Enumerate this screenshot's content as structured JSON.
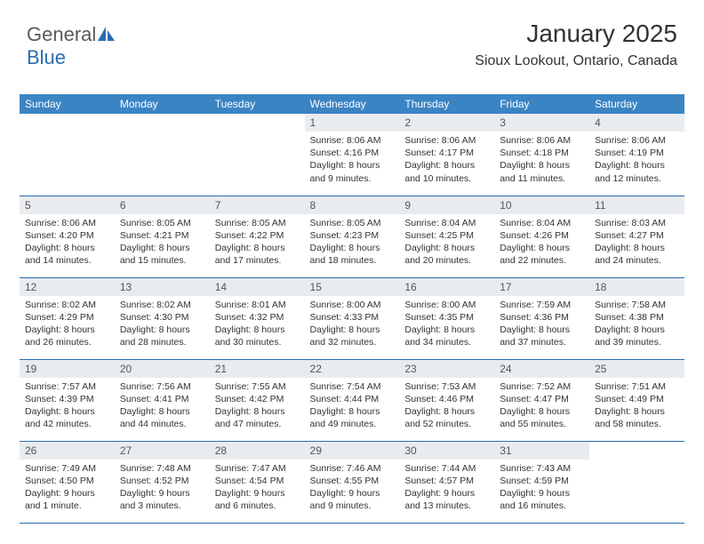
{
  "brand": {
    "part1": "General",
    "part2": "Blue"
  },
  "title": "January 2025",
  "location": "Sioux Lookout, Ontario, Canada",
  "colors": {
    "header_bg": "#3b84c4",
    "header_text": "#ffffff",
    "daynum_bg": "#e9ecef",
    "border": "#2a6db0",
    "text": "#333333",
    "logo_gray": "#5a5a5a",
    "logo_blue": "#2a6db0",
    "background": "#ffffff"
  },
  "typography": {
    "title_fontsize": 28,
    "location_fontsize": 16,
    "dayheader_fontsize": 12,
    "daynum_fontsize": 12,
    "body_fontsize": 10.5
  },
  "day_headers": [
    "Sunday",
    "Monday",
    "Tuesday",
    "Wednesday",
    "Thursday",
    "Friday",
    "Saturday"
  ],
  "weeks": [
    [
      {
        "empty": true
      },
      {
        "empty": true
      },
      {
        "empty": true
      },
      {
        "num": "1",
        "sunrise": "Sunrise: 8:06 AM",
        "sunset": "Sunset: 4:16 PM",
        "daylight1": "Daylight: 8 hours",
        "daylight2": "and 9 minutes."
      },
      {
        "num": "2",
        "sunrise": "Sunrise: 8:06 AM",
        "sunset": "Sunset: 4:17 PM",
        "daylight1": "Daylight: 8 hours",
        "daylight2": "and 10 minutes."
      },
      {
        "num": "3",
        "sunrise": "Sunrise: 8:06 AM",
        "sunset": "Sunset: 4:18 PM",
        "daylight1": "Daylight: 8 hours",
        "daylight2": "and 11 minutes."
      },
      {
        "num": "4",
        "sunrise": "Sunrise: 8:06 AM",
        "sunset": "Sunset: 4:19 PM",
        "daylight1": "Daylight: 8 hours",
        "daylight2": "and 12 minutes."
      }
    ],
    [
      {
        "num": "5",
        "sunrise": "Sunrise: 8:06 AM",
        "sunset": "Sunset: 4:20 PM",
        "daylight1": "Daylight: 8 hours",
        "daylight2": "and 14 minutes."
      },
      {
        "num": "6",
        "sunrise": "Sunrise: 8:05 AM",
        "sunset": "Sunset: 4:21 PM",
        "daylight1": "Daylight: 8 hours",
        "daylight2": "and 15 minutes."
      },
      {
        "num": "7",
        "sunrise": "Sunrise: 8:05 AM",
        "sunset": "Sunset: 4:22 PM",
        "daylight1": "Daylight: 8 hours",
        "daylight2": "and 17 minutes."
      },
      {
        "num": "8",
        "sunrise": "Sunrise: 8:05 AM",
        "sunset": "Sunset: 4:23 PM",
        "daylight1": "Daylight: 8 hours",
        "daylight2": "and 18 minutes."
      },
      {
        "num": "9",
        "sunrise": "Sunrise: 8:04 AM",
        "sunset": "Sunset: 4:25 PM",
        "daylight1": "Daylight: 8 hours",
        "daylight2": "and 20 minutes."
      },
      {
        "num": "10",
        "sunrise": "Sunrise: 8:04 AM",
        "sunset": "Sunset: 4:26 PM",
        "daylight1": "Daylight: 8 hours",
        "daylight2": "and 22 minutes."
      },
      {
        "num": "11",
        "sunrise": "Sunrise: 8:03 AM",
        "sunset": "Sunset: 4:27 PM",
        "daylight1": "Daylight: 8 hours",
        "daylight2": "and 24 minutes."
      }
    ],
    [
      {
        "num": "12",
        "sunrise": "Sunrise: 8:02 AM",
        "sunset": "Sunset: 4:29 PM",
        "daylight1": "Daylight: 8 hours",
        "daylight2": "and 26 minutes."
      },
      {
        "num": "13",
        "sunrise": "Sunrise: 8:02 AM",
        "sunset": "Sunset: 4:30 PM",
        "daylight1": "Daylight: 8 hours",
        "daylight2": "and 28 minutes."
      },
      {
        "num": "14",
        "sunrise": "Sunrise: 8:01 AM",
        "sunset": "Sunset: 4:32 PM",
        "daylight1": "Daylight: 8 hours",
        "daylight2": "and 30 minutes."
      },
      {
        "num": "15",
        "sunrise": "Sunrise: 8:00 AM",
        "sunset": "Sunset: 4:33 PM",
        "daylight1": "Daylight: 8 hours",
        "daylight2": "and 32 minutes."
      },
      {
        "num": "16",
        "sunrise": "Sunrise: 8:00 AM",
        "sunset": "Sunset: 4:35 PM",
        "daylight1": "Daylight: 8 hours",
        "daylight2": "and 34 minutes."
      },
      {
        "num": "17",
        "sunrise": "Sunrise: 7:59 AM",
        "sunset": "Sunset: 4:36 PM",
        "daylight1": "Daylight: 8 hours",
        "daylight2": "and 37 minutes."
      },
      {
        "num": "18",
        "sunrise": "Sunrise: 7:58 AM",
        "sunset": "Sunset: 4:38 PM",
        "daylight1": "Daylight: 8 hours",
        "daylight2": "and 39 minutes."
      }
    ],
    [
      {
        "num": "19",
        "sunrise": "Sunrise: 7:57 AM",
        "sunset": "Sunset: 4:39 PM",
        "daylight1": "Daylight: 8 hours",
        "daylight2": "and 42 minutes."
      },
      {
        "num": "20",
        "sunrise": "Sunrise: 7:56 AM",
        "sunset": "Sunset: 4:41 PM",
        "daylight1": "Daylight: 8 hours",
        "daylight2": "and 44 minutes."
      },
      {
        "num": "21",
        "sunrise": "Sunrise: 7:55 AM",
        "sunset": "Sunset: 4:42 PM",
        "daylight1": "Daylight: 8 hours",
        "daylight2": "and 47 minutes."
      },
      {
        "num": "22",
        "sunrise": "Sunrise: 7:54 AM",
        "sunset": "Sunset: 4:44 PM",
        "daylight1": "Daylight: 8 hours",
        "daylight2": "and 49 minutes."
      },
      {
        "num": "23",
        "sunrise": "Sunrise: 7:53 AM",
        "sunset": "Sunset: 4:46 PM",
        "daylight1": "Daylight: 8 hours",
        "daylight2": "and 52 minutes."
      },
      {
        "num": "24",
        "sunrise": "Sunrise: 7:52 AM",
        "sunset": "Sunset: 4:47 PM",
        "daylight1": "Daylight: 8 hours",
        "daylight2": "and 55 minutes."
      },
      {
        "num": "25",
        "sunrise": "Sunrise: 7:51 AM",
        "sunset": "Sunset: 4:49 PM",
        "daylight1": "Daylight: 8 hours",
        "daylight2": "and 58 minutes."
      }
    ],
    [
      {
        "num": "26",
        "sunrise": "Sunrise: 7:49 AM",
        "sunset": "Sunset: 4:50 PM",
        "daylight1": "Daylight: 9 hours",
        "daylight2": "and 1 minute."
      },
      {
        "num": "27",
        "sunrise": "Sunrise: 7:48 AM",
        "sunset": "Sunset: 4:52 PM",
        "daylight1": "Daylight: 9 hours",
        "daylight2": "and 3 minutes."
      },
      {
        "num": "28",
        "sunrise": "Sunrise: 7:47 AM",
        "sunset": "Sunset: 4:54 PM",
        "daylight1": "Daylight: 9 hours",
        "daylight2": "and 6 minutes."
      },
      {
        "num": "29",
        "sunrise": "Sunrise: 7:46 AM",
        "sunset": "Sunset: 4:55 PM",
        "daylight1": "Daylight: 9 hours",
        "daylight2": "and 9 minutes."
      },
      {
        "num": "30",
        "sunrise": "Sunrise: 7:44 AM",
        "sunset": "Sunset: 4:57 PM",
        "daylight1": "Daylight: 9 hours",
        "daylight2": "and 13 minutes."
      },
      {
        "num": "31",
        "sunrise": "Sunrise: 7:43 AM",
        "sunset": "Sunset: 4:59 PM",
        "daylight1": "Daylight: 9 hours",
        "daylight2": "and 16 minutes."
      },
      {
        "empty": true
      }
    ]
  ]
}
